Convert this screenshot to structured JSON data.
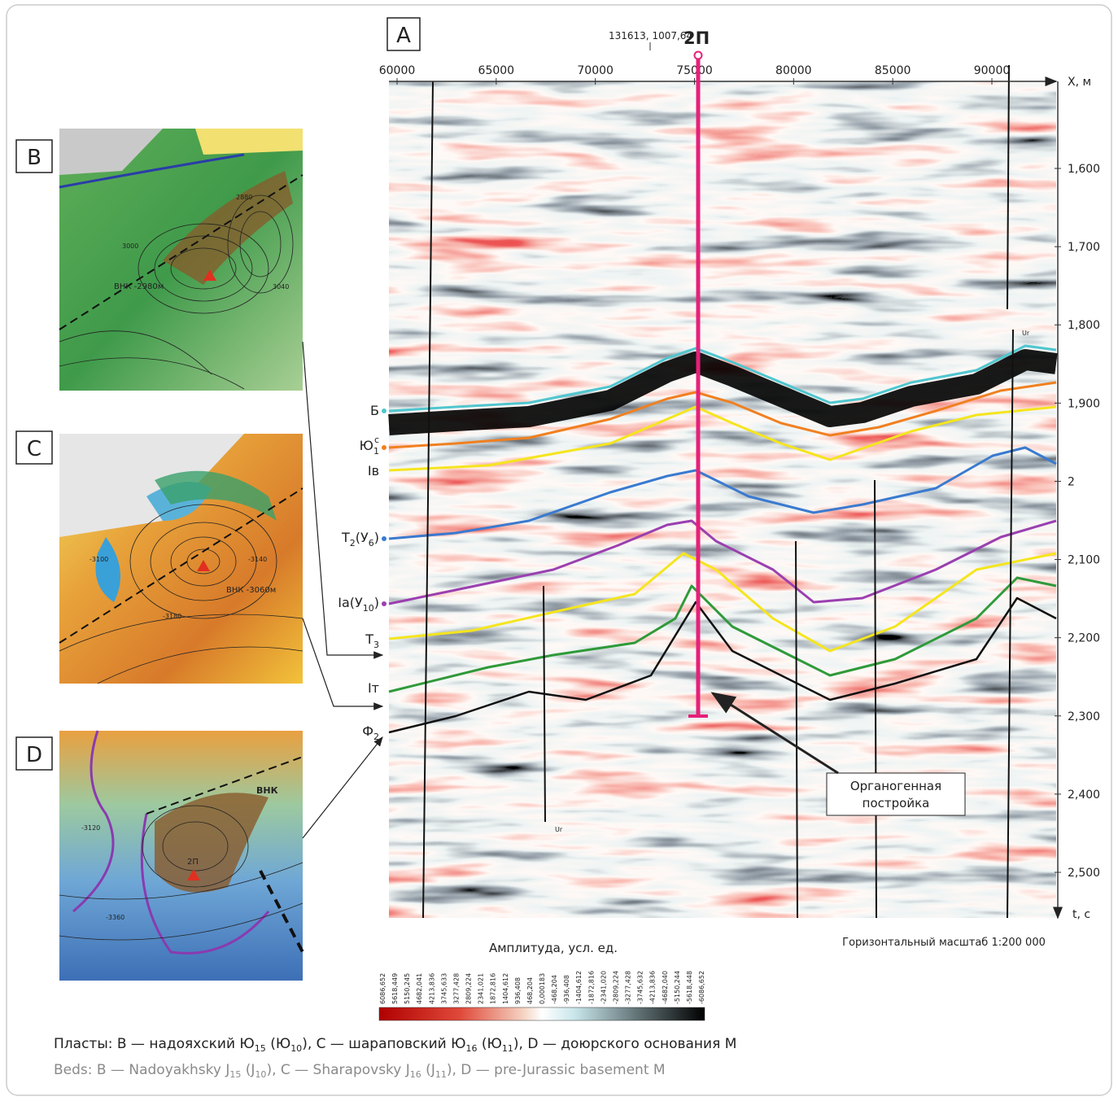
{
  "panel_labels": [
    "A",
    "B",
    "C",
    "D"
  ],
  "section": {
    "well": "2П",
    "well_coords": "131613, 1007,64",
    "x_axis_label": "X, м",
    "t_axis_label": "t, с",
    "x_ticks": [
      60000,
      65000,
      70000,
      75000,
      80000,
      85000,
      90000
    ],
    "t_ticks": [
      {
        "value": 1.6,
        "label": "1,600"
      },
      {
        "value": 1.7,
        "label": "1,700"
      },
      {
        "value": 1.8,
        "label": "1,800"
      },
      {
        "value": 1.9,
        "label": "1,900"
      },
      {
        "value": 2,
        "label": "2"
      },
      {
        "value": 2.1,
        "label": "2,100"
      },
      {
        "value": 2.2,
        "label": "2,200"
      },
      {
        "value": 2.3,
        "label": "2,300"
      },
      {
        "value": 2.4,
        "label": "2,400"
      },
      {
        "value": 2.5,
        "label": "2,500"
      }
    ],
    "horizons": [
      {
        "parts": [
          "Б"
        ]
      },
      {
        "parts": [
          "Ю",
          "1",
          "c"
        ]
      },
      {
        "parts": [
          "Iв"
        ]
      },
      {
        "parts": [
          "Т",
          "2",
          "(У",
          "6",
          ")"
        ]
      },
      {
        "parts": [
          "Ia(У",
          "10",
          ")"
        ]
      },
      {
        "parts": [
          "Т",
          "3"
        ]
      },
      {
        "parts": [
          "Iт"
        ]
      },
      {
        "parts": [
          "Ф",
          "2"
        ]
      }
    ],
    "fault_labels": [
      "Ur",
      "Ur"
    ],
    "annotation": [
      "Органогенная",
      "постройка"
    ],
    "horizontal_scale": "Горизонтальный масштаб 1:200 000"
  },
  "maps": {
    "B": {
      "labels": [
        "ВНК -2980м",
        "3000",
        "3040",
        "2880"
      ]
    },
    "C": {
      "labels": [
        "ВНК -3060м",
        "-3100",
        "-3140",
        "-3180"
      ]
    },
    "D": {
      "labels": [
        "ВНК",
        "2П",
        "-3120",
        "-3360"
      ]
    }
  },
  "colorbar": {
    "title": "Амплитуда, усл. ед.",
    "ticks": [
      "6086,652",
      "5618,449",
      "5150,245",
      "4682,041",
      "4213,836",
      "3745,633",
      "3277,428",
      "2809,224",
      "2341,021",
      "1872,816",
      "1404,612",
      "936,408",
      "468,204",
      "0,000183",
      "-468,204",
      "-936,408",
      "-1404,612",
      "-1872,816",
      "-2341,020",
      "-2809,224",
      "-3277,428",
      "-3745,632",
      "-4213,836",
      "-4682,040",
      "-5150,244",
      "-5618,448",
      "-6086,652"
    ]
  },
  "caption": {
    "ru": [
      "Пласты: B — надояхский Ю",
      "15",
      " (Ю",
      "10",
      "), C — шараповский Ю",
      "16",
      " (Ю",
      "11",
      "), D — доюрского основания М"
    ],
    "en": [
      "Beds: B — Nadoyakhsky J",
      "15",
      " (J",
      "10",
      "), C — Sharapovsky J",
      "16",
      " (J",
      "11",
      "), D — pre-Jurassic basement M"
    ]
  }
}
